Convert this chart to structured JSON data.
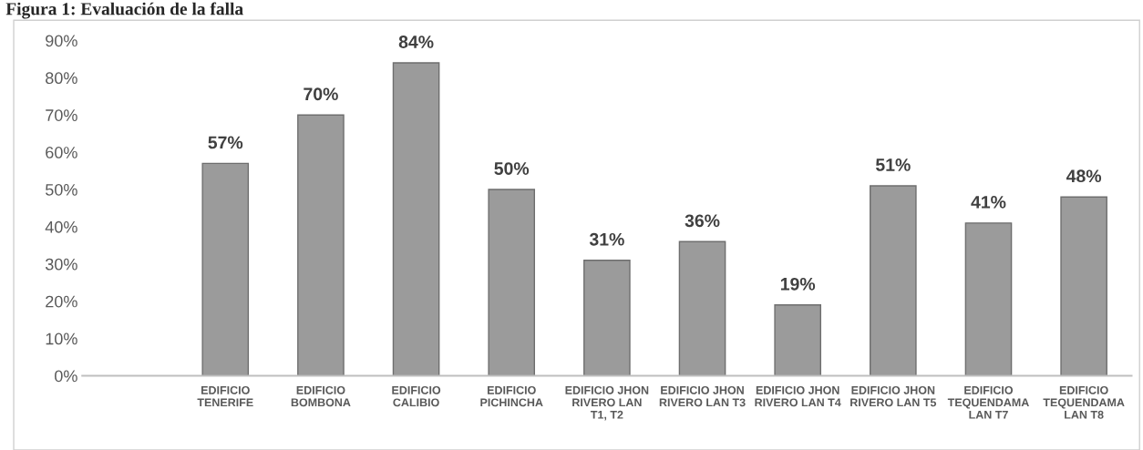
{
  "chart_data": {
    "type": "bar",
    "title": "Figura 1: Evaluación de la falla",
    "categories": [
      null,
      "EDIFICIO\nTENERIFE",
      "EDIFICIO\nBOMBONA",
      "EDIFICIO\nCALIBIO",
      "EDIFICIO\nPICHINCHA",
      "EDIFICIO JHON\nRIVERO LAN\nT1, T2",
      "EDIFICIO JHON\nRIVERO LAN T3",
      "EDIFICIO JHON\nRIVERO LAN T4",
      "EDIFICIO JHON\nRIVERO LAN T5",
      "EDIFICIO\nTEQUENDAMA\nLAN T7",
      "EDIFICIO\nTEQUENDAMA\nLAN T8"
    ],
    "values": [
      null,
      57,
      70,
      84,
      50,
      31,
      36,
      19,
      51,
      41,
      48
    ],
    "value_labels": [
      null,
      "57%",
      "70%",
      "84%",
      "50%",
      "31%",
      "36%",
      "19%",
      "51%",
      "41%",
      "48%"
    ],
    "color": "#9b9b9b",
    "ylim": [
      0,
      90
    ],
    "yticks": [
      {
        "value": 0,
        "label": "0%"
      },
      {
        "value": 10,
        "label": "10%"
      },
      {
        "value": 20,
        "label": "20%"
      },
      {
        "value": 30,
        "label": "30%"
      },
      {
        "value": 40,
        "label": "40%"
      },
      {
        "value": 50,
        "label": "50%"
      },
      {
        "value": 60,
        "label": "60%"
      },
      {
        "value": 70,
        "label": "70%"
      },
      {
        "value": 80,
        "label": "80%"
      },
      {
        "value": 90,
        "label": "90%"
      }
    ],
    "grid": false,
    "legend": false
  }
}
